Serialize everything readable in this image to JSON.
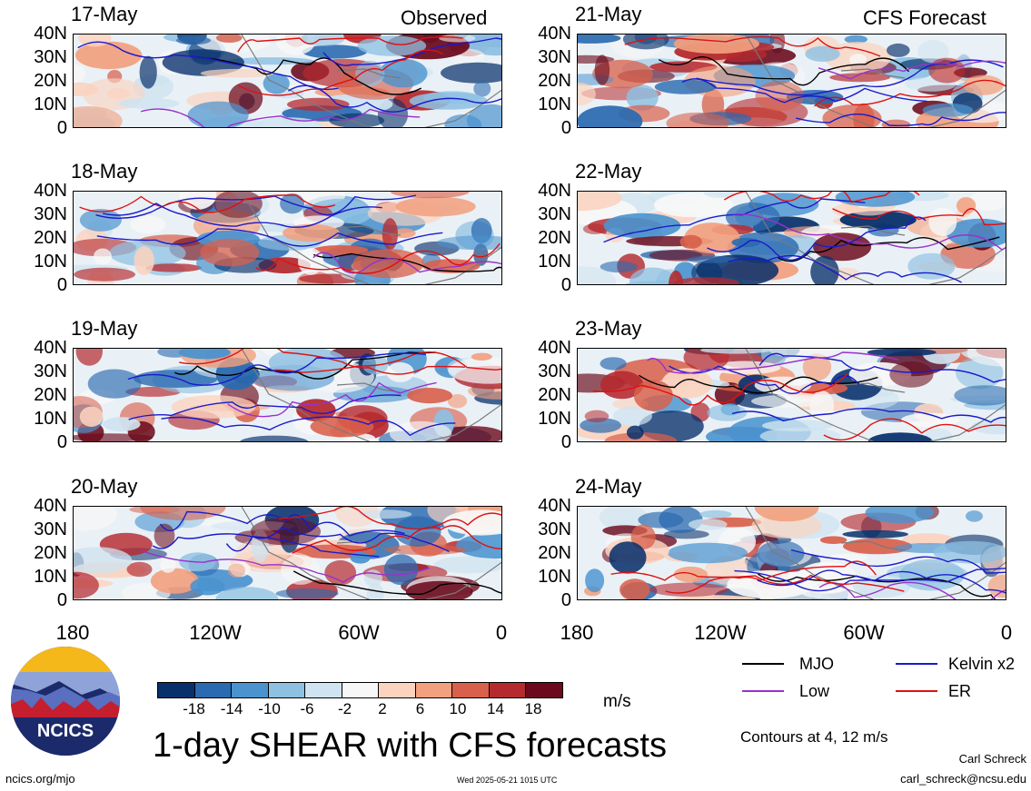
{
  "column_titles": {
    "left": "Observed",
    "right": "CFS Forecast"
  },
  "panels": [
    {
      "date": "17-May",
      "column": "left"
    },
    {
      "date": "18-May",
      "column": "left"
    },
    {
      "date": "19-May",
      "column": "left"
    },
    {
      "date": "20-May",
      "column": "left"
    },
    {
      "date": "21-May",
      "column": "right"
    },
    {
      "date": "22-May",
      "column": "right"
    },
    {
      "date": "23-May",
      "column": "right"
    },
    {
      "date": "24-May",
      "column": "right"
    }
  ],
  "lat_ticks": [
    "40N",
    "30N",
    "20N",
    "10N",
    "0"
  ],
  "lon_ticks": [
    "180",
    "120W",
    "60W",
    "0"
  ],
  "colorbar": {
    "ticks": [
      "-18",
      "-14",
      "-10",
      "-6",
      "-2",
      "2",
      "6",
      "10",
      "14",
      "18"
    ],
    "colors": [
      "#08306b",
      "#2a6ab0",
      "#4a93cf",
      "#8ec0e2",
      "#cfe3f0",
      "#f7f7f7",
      "#fbd3bf",
      "#f2a07e",
      "#d9604b",
      "#b52a2f",
      "#6b0a1c"
    ],
    "unit": "m/s"
  },
  "legend": [
    {
      "label": "MJO",
      "color": "#000000"
    },
    {
      "label": "Kelvin x2",
      "color": "#1a1acc"
    },
    {
      "label": "Low",
      "color": "#9932cc"
    },
    {
      "label": "ER",
      "color": "#e01010"
    }
  ],
  "contour_note": "Contours at 4, 12 m/s",
  "title": "1-day SHEAR with CFS forecasts",
  "logo_text": "NCICS",
  "footer": {
    "url": "ncics.org/mjo",
    "timestamp": "Wed 2025-05-21 1015 UTC",
    "author": "Carl Schreck",
    "email": "carl_schreck@ncsu.edu"
  }
}
